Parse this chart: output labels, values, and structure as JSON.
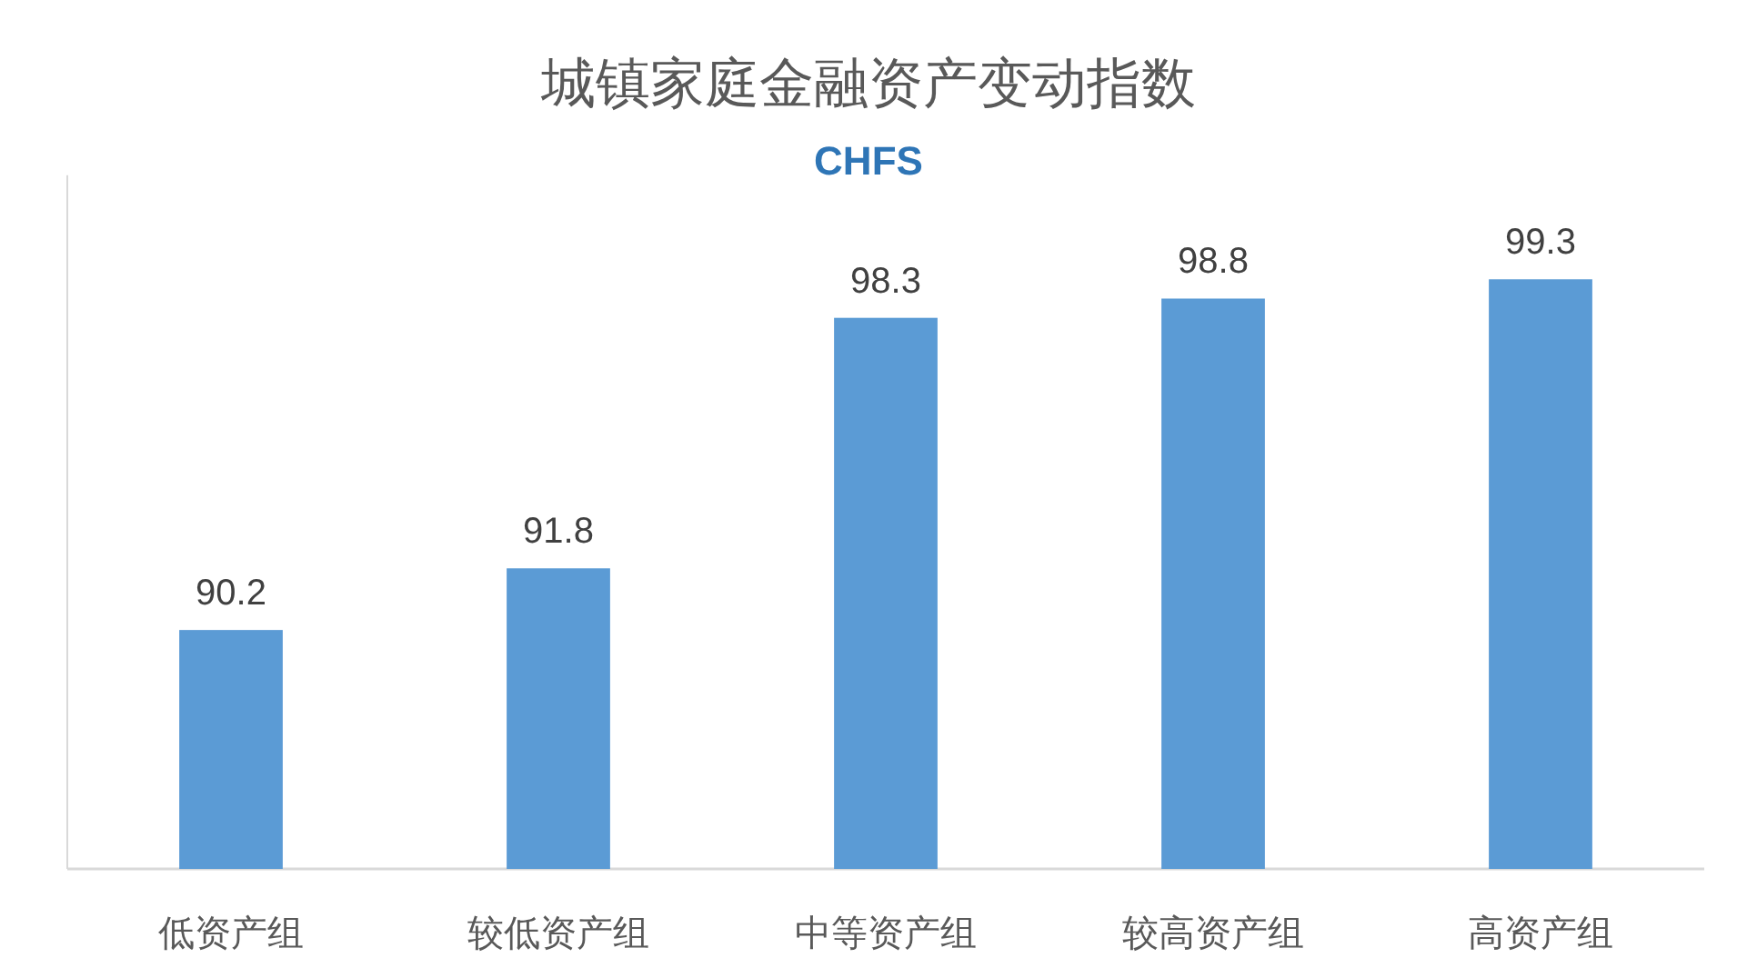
{
  "chart_data": {
    "type": "bar",
    "title": "城镇家庭金融资产变动指数",
    "subtitle": "CHFS",
    "categories": [
      "低资产组",
      "较低资产组",
      "中等资产组",
      "较高资产组",
      "高资产组"
    ],
    "values": [
      90.2,
      91.8,
      98.3,
      98.8,
      99.3
    ],
    "color": "#5b9bd5",
    "ylim": [
      84,
      102
    ],
    "data_labels": true
  }
}
